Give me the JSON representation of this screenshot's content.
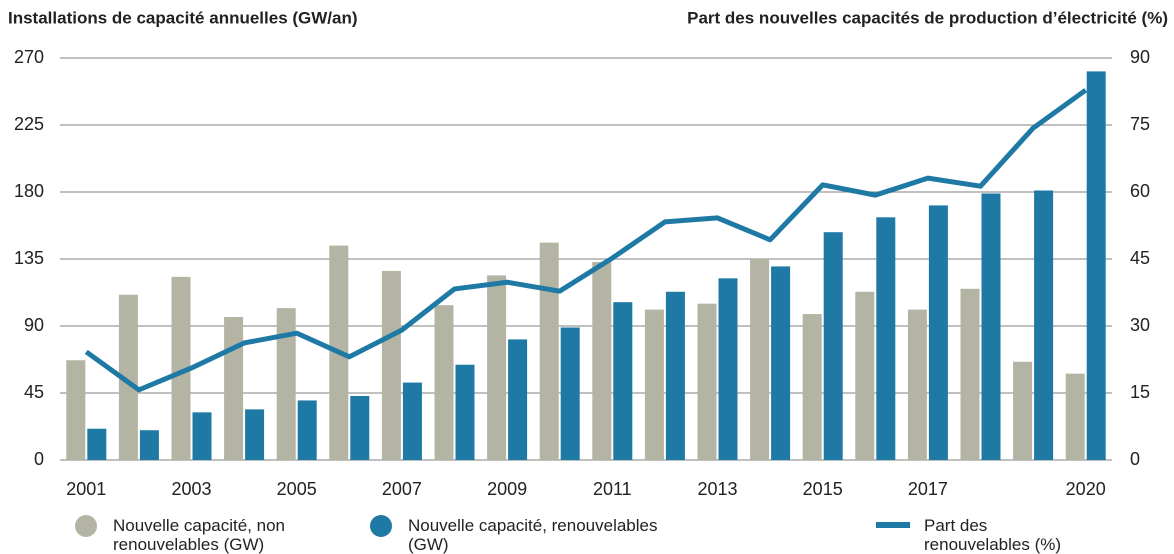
{
  "chart_data": {
    "type": "bar",
    "title": "Installations de capacité annuelles (GW/an)",
    "y2_title": "Part des nouvelles capacités de production d’électricité (%)",
    "categories": [
      "2001",
      null,
      "2003",
      null,
      "2005",
      null,
      "2007",
      null,
      "2009",
      null,
      "2011",
      null,
      "2013",
      null,
      "2015",
      null,
      "2017",
      null,
      null,
      "2020"
    ],
    "series": [
      {
        "name": "Nouvelle capacité, non renouvelables (GW)",
        "color": "#b4b4a4",
        "type": "bar",
        "values": [
          67,
          111,
          123,
          96,
          102,
          144,
          127,
          104,
          124,
          146,
          133,
          101,
          105,
          135,
          98,
          113,
          101,
          115,
          66,
          58
        ]
      },
      {
        "name": "Nouvelle capacité, renouvelables (GW)",
        "color": "#1f79a5",
        "type": "bar",
        "values": [
          21,
          20,
          32,
          34,
          40,
          43,
          52,
          64,
          81,
          89,
          106,
          113,
          122,
          130,
          153,
          163,
          171,
          179,
          181,
          261
        ]
      },
      {
        "name": "Part des renouvelables (%)",
        "color": "#1f79a5",
        "type": "line",
        "axis": "y2",
        "values": [
          24.2,
          15.7,
          20.6,
          26.2,
          28.4,
          23.1,
          29.1,
          38.3,
          39.8,
          37.8,
          45.2,
          53.3,
          54.2,
          49.3,
          61.6,
          59.3,
          63.1,
          61.3,
          74.3,
          82.8
        ]
      }
    ],
    "ylim": [
      0,
      270
    ],
    "yticks": [
      0,
      45,
      90,
      135,
      180,
      225,
      270
    ],
    "y2lim": [
      0,
      90
    ],
    "y2ticks": [
      0,
      15,
      30,
      45,
      60,
      75,
      90
    ],
    "grid": true
  }
}
